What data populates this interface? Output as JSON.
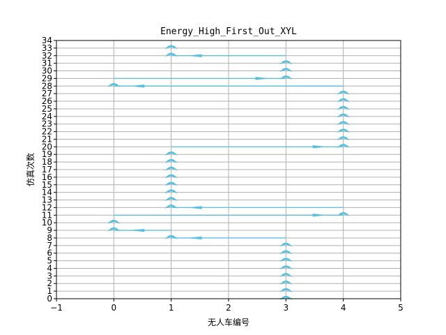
{
  "chart_data": {
    "type": "line",
    "title": "Energy_High_First_Out_XYL",
    "xlabel": "无人车编号",
    "ylabel": "仿真次数",
    "xlim": [
      -1,
      5
    ],
    "ylim": [
      0,
      34
    ],
    "xticks": [
      -1,
      0,
      1,
      2,
      3,
      4,
      5
    ],
    "yticks": [
      0,
      1,
      2,
      3,
      4,
      5,
      6,
      7,
      8,
      9,
      10,
      11,
      12,
      13,
      14,
      15,
      16,
      17,
      18,
      19,
      20,
      21,
      22,
      23,
      24,
      25,
      26,
      27,
      28,
      29,
      30,
      31,
      32,
      33,
      34
    ],
    "grid": true,
    "color": "#5BC0DE",
    "points": [
      {
        "run": 0,
        "vehicle": 3
      },
      {
        "run": 1,
        "vehicle": 3
      },
      {
        "run": 2,
        "vehicle": 3
      },
      {
        "run": 3,
        "vehicle": 3
      },
      {
        "run": 4,
        "vehicle": 3
      },
      {
        "run": 5,
        "vehicle": 3
      },
      {
        "run": 6,
        "vehicle": 3
      },
      {
        "run": 7,
        "vehicle": 3
      },
      {
        "run": 8,
        "vehicle": 1
      },
      {
        "run": 9,
        "vehicle": 0
      },
      {
        "run": 10,
        "vehicle": 0
      },
      {
        "run": 11,
        "vehicle": 4
      },
      {
        "run": 12,
        "vehicle": 1
      },
      {
        "run": 13,
        "vehicle": 1
      },
      {
        "run": 14,
        "vehicle": 1
      },
      {
        "run": 15,
        "vehicle": 1
      },
      {
        "run": 16,
        "vehicle": 1
      },
      {
        "run": 17,
        "vehicle": 1
      },
      {
        "run": 18,
        "vehicle": 1
      },
      {
        "run": 19,
        "vehicle": 1
      },
      {
        "run": 20,
        "vehicle": 4
      },
      {
        "run": 21,
        "vehicle": 4
      },
      {
        "run": 22,
        "vehicle": 4
      },
      {
        "run": 23,
        "vehicle": 4
      },
      {
        "run": 24,
        "vehicle": 4
      },
      {
        "run": 25,
        "vehicle": 4
      },
      {
        "run": 26,
        "vehicle": 4
      },
      {
        "run": 27,
        "vehicle": 4
      },
      {
        "run": 28,
        "vehicle": 0
      },
      {
        "run": 29,
        "vehicle": 3
      },
      {
        "run": 30,
        "vehicle": 3
      },
      {
        "run": 31,
        "vehicle": 3
      },
      {
        "run": 32,
        "vehicle": 1
      },
      {
        "run": 33,
        "vehicle": 1
      }
    ],
    "horizontal_segments": [
      {
        "run": 8,
        "from": 3,
        "to": 1
      },
      {
        "run": 9,
        "from": 1,
        "to": 0
      },
      {
        "run": 11,
        "from": 0,
        "to": 4
      },
      {
        "run": 12,
        "from": 4,
        "to": 1
      },
      {
        "run": 20,
        "from": 1,
        "to": 4
      },
      {
        "run": 28,
        "from": 4,
        "to": 0
      },
      {
        "run": 29,
        "from": 0,
        "to": 3
      },
      {
        "run": 32,
        "from": 3,
        "to": 1
      }
    ]
  }
}
